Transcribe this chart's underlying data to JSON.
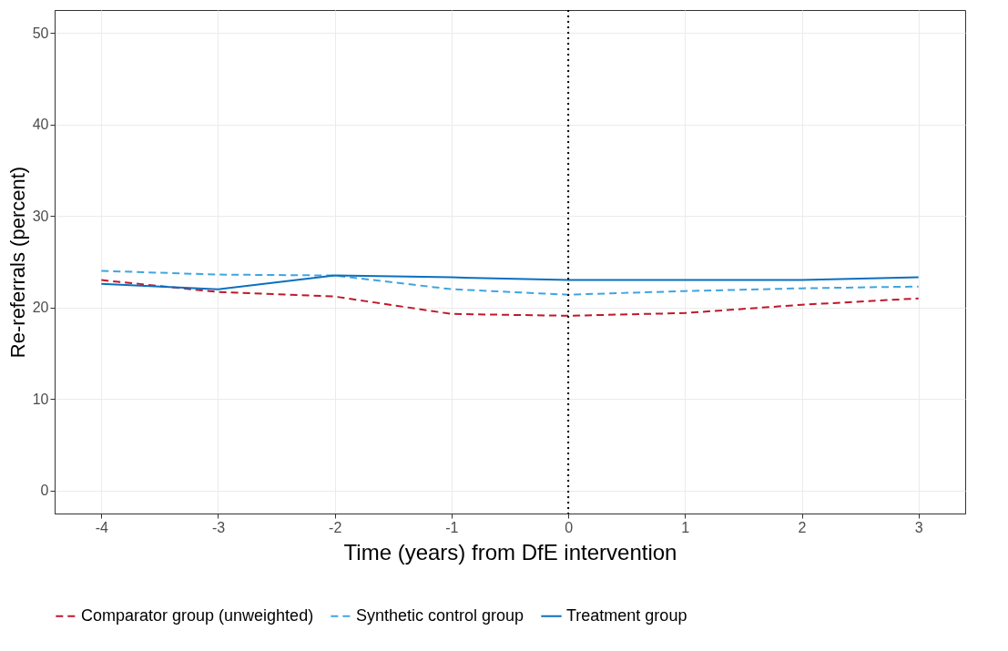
{
  "chart_data": {
    "type": "line",
    "xlabel": "Time (years) from DfE intervention",
    "ylabel": "Re-referrals (percent)",
    "x": [
      -4,
      -3,
      -2,
      -1,
      0,
      1,
      2,
      3
    ],
    "series": [
      {
        "name": "Comparator group (unweighted)",
        "color": "#c0182a",
        "line_style": "dashed",
        "values": [
          23.0,
          21.7,
          21.2,
          19.3,
          19.1,
          19.4,
          20.3,
          21.0
        ]
      },
      {
        "name": "Synthetic control group",
        "color": "#3fa5e0",
        "line_style": "dashed",
        "values": [
          24.0,
          23.6,
          23.5,
          22.0,
          21.4,
          21.8,
          22.1,
          22.3
        ]
      },
      {
        "name": "Treatment group",
        "color": "#0c6fbd",
        "line_style": "solid",
        "values": [
          22.6,
          22.0,
          23.5,
          23.3,
          23.0,
          23.0,
          23.0,
          23.3
        ]
      }
    ],
    "xlim": [
      -4.4,
      3.4
    ],
    "xticks": [
      -4,
      -3,
      -2,
      -1,
      0,
      1,
      2,
      3
    ],
    "ylim": [
      -2.5,
      52.5
    ],
    "yticks": [
      0,
      10,
      20,
      30,
      40,
      50
    ],
    "ref_lines": [
      {
        "axis": "x",
        "value": 0,
        "color": "#000000",
        "line_style": "dotted"
      }
    ],
    "grid": true,
    "legend": "bottom",
    "marker": "none"
  }
}
